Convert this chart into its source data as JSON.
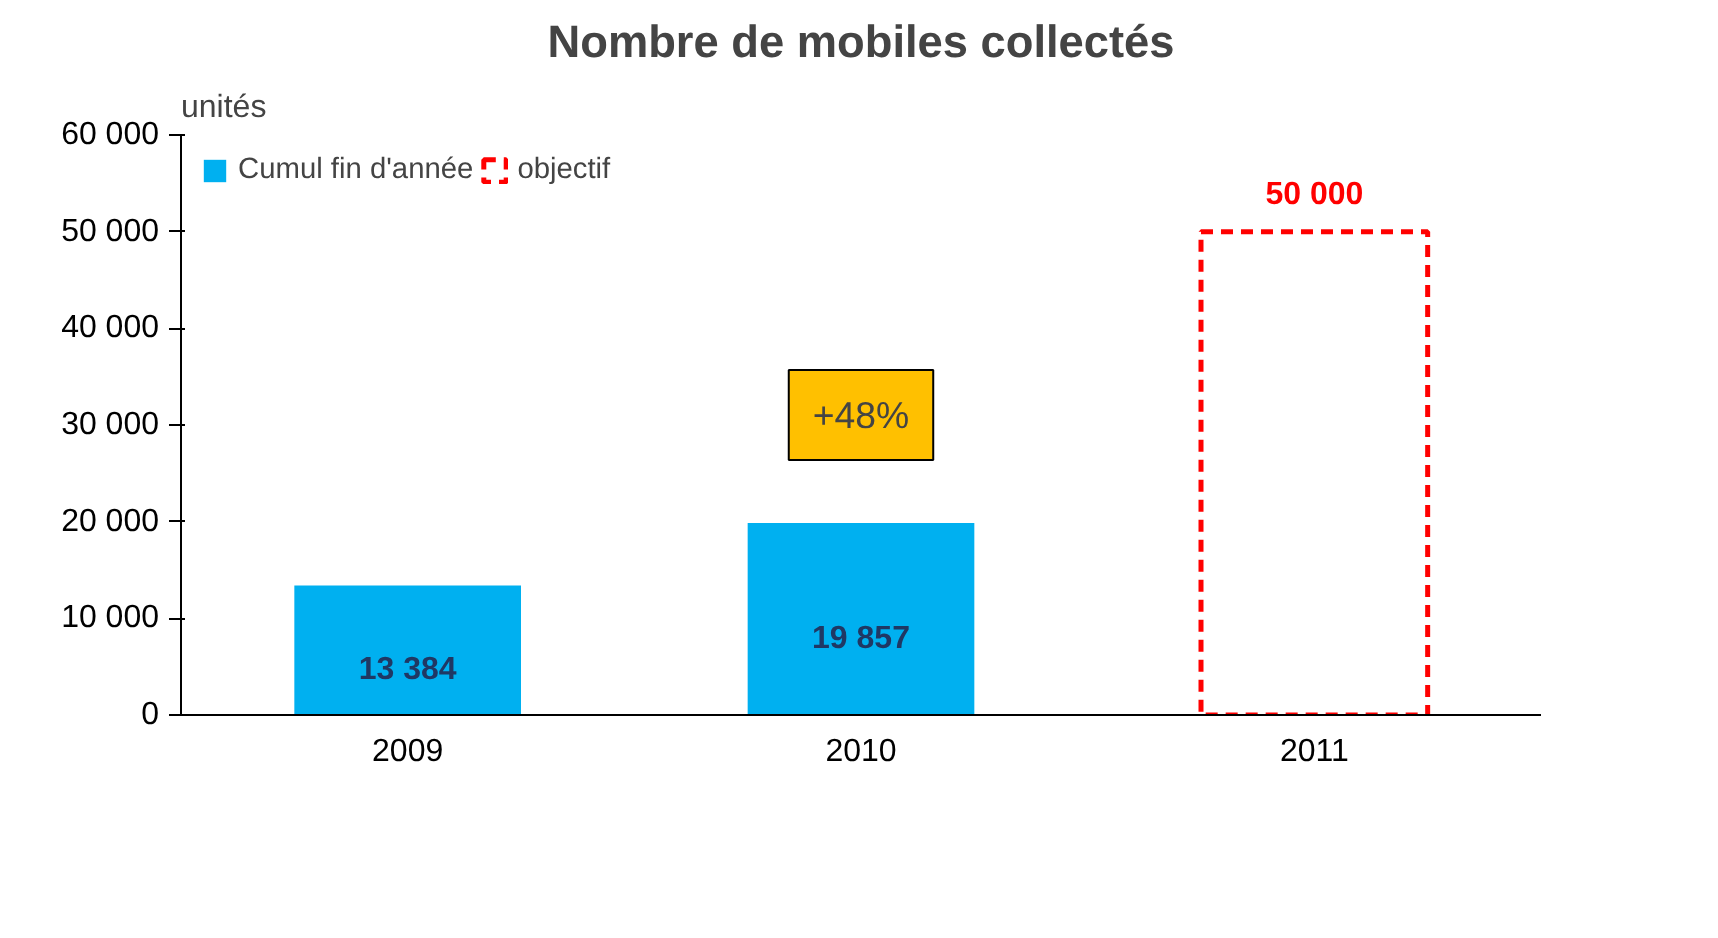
{
  "chart_data": {
    "type": "bar",
    "title": "Nombre de mobiles collectés",
    "ylabel": "unités",
    "categories": [
      "2009",
      "2010",
      "2011"
    ],
    "series": [
      {
        "name": "Cumul fin d'année",
        "color": "#00b0f0",
        "values": [
          13384,
          19857,
          null
        ],
        "value_labels": [
          "13 384",
          "19 857",
          null
        ]
      },
      {
        "name": "objectif",
        "color": "#ff0000",
        "line_style": "dashed",
        "values": [
          null,
          null,
          50000
        ],
        "value_labels": [
          null,
          null,
          "50 000"
        ]
      }
    ],
    "ylim": [
      0,
      60000
    ],
    "yticks": [
      {
        "value": 0,
        "label": "0"
      },
      {
        "value": 10000,
        "label": "10 000"
      },
      {
        "value": 20000,
        "label": "20 000"
      },
      {
        "value": 30000,
        "label": "30 000"
      },
      {
        "value": 40000,
        "label": "40 000"
      },
      {
        "value": 50000,
        "label": "50 000"
      },
      {
        "value": 60000,
        "label": "60 000"
      }
    ],
    "annotations": [
      "+48%"
    ],
    "grid": false,
    "legend": "top left"
  }
}
